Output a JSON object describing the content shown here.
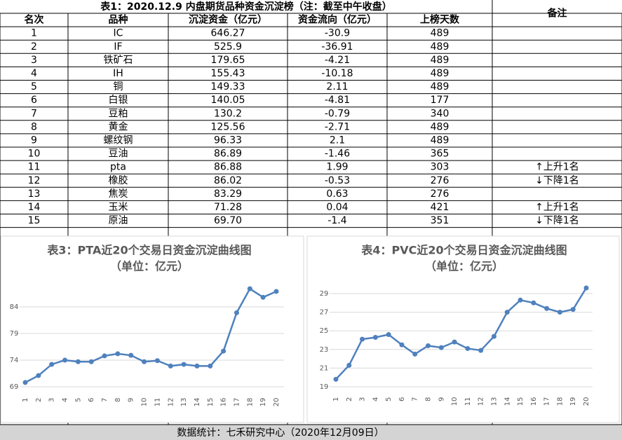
{
  "table": {
    "title": "表1：2020.12.9 内盘期货品种资金沉淀榜（注：截至中午收盘）",
    "header": [
      "名次",
      "品种",
      "沉淀资金（亿元）",
      "资金流向（亿元）",
      "上榜天数",
      "备注"
    ],
    "rows": [
      [
        "1",
        "IC",
        "646.27",
        "-30.9",
        "489"
      ],
      [
        "2",
        "IF",
        "525.9",
        "-36.91",
        "489"
      ],
      [
        "3",
        "铁矿石",
        "179.65",
        "-4.21",
        "489"
      ],
      [
        "4",
        "IH",
        "155.43",
        "-10.18",
        "489"
      ],
      [
        "5",
        "铜",
        "149.33",
        "2.11",
        "489"
      ],
      [
        "6",
        "白银",
        "140.05",
        "-4.81",
        "177"
      ],
      [
        "7",
        "豆粕",
        "130.2",
        "-0.79",
        "340"
      ],
      [
        "8",
        "黄金",
        "125.56",
        "-2.71",
        "489"
      ],
      [
        "9",
        "螺纹钢",
        "96.33",
        "2.1",
        "489"
      ],
      [
        "10",
        "豆油",
        "86.89",
        "-1.46",
        "365"
      ],
      [
        "11",
        "pta",
        "86.88",
        "1.99",
        "303",
        "↑上升1名"
      ],
      [
        "12",
        "橡胶",
        "86.02",
        "-0.53",
        "276",
        "↓下降1名"
      ],
      [
        "13",
        "焦炭",
        "83.29",
        "0.63",
        "276"
      ],
      [
        "14",
        "玉米",
        "71.28",
        "0.04",
        "421",
        "↑上升1名"
      ],
      [
        "15",
        "原油",
        "69.70",
        "-1.4",
        "351",
        "↓下降1名"
      ]
    ]
  },
  "chart_data": [
    {
      "type": "line",
      "title": "表3：PTA近20个交易日资金沉淀曲线图",
      "subtitle": "（单位：亿元）",
      "categories": [
        "1",
        "2",
        "3",
        "4",
        "5",
        "6",
        "7",
        "8",
        "9",
        "10",
        "11",
        "12",
        "13",
        "14",
        "15",
        "16",
        "17",
        "18",
        "19",
        "20"
      ],
      "values": [
        69.8,
        71.1,
        73.2,
        74.0,
        73.7,
        73.7,
        74.8,
        75.2,
        74.9,
        73.7,
        73.9,
        72.9,
        73.2,
        72.9,
        72.9,
        75.7,
        82.9,
        87.4,
        85.8,
        86.9
      ],
      "color": "#4f81bd",
      "ylim": [
        68,
        89
      ],
      "yticks": [
        69,
        74,
        79,
        84
      ],
      "grid": true
    },
    {
      "type": "line",
      "title": "表4：PVC近20个交易日资金沉淀曲线图",
      "subtitle": "（单位：亿元）",
      "categories": [
        "1",
        "2",
        "3",
        "4",
        "5",
        "6",
        "7",
        "8",
        "9",
        "10",
        "11",
        "12",
        "13",
        "14",
        "15",
        "16",
        "17",
        "18",
        "19",
        "20"
      ],
      "values": [
        19.8,
        21.3,
        24.1,
        24.3,
        24.6,
        23.5,
        22.5,
        23.4,
        23.2,
        23.8,
        23.1,
        22.9,
        24.4,
        27.0,
        28.3,
        28.0,
        27.4,
        27.0,
        27.3,
        29.6
      ],
      "color": "#4f81bd",
      "ylim": [
        18.5,
        30
      ],
      "yticks": [
        19,
        21,
        23,
        25,
        27,
        29
      ],
      "grid": true
    }
  ],
  "footer": "数据统计：七禾研究中心（2020年12月09日）"
}
